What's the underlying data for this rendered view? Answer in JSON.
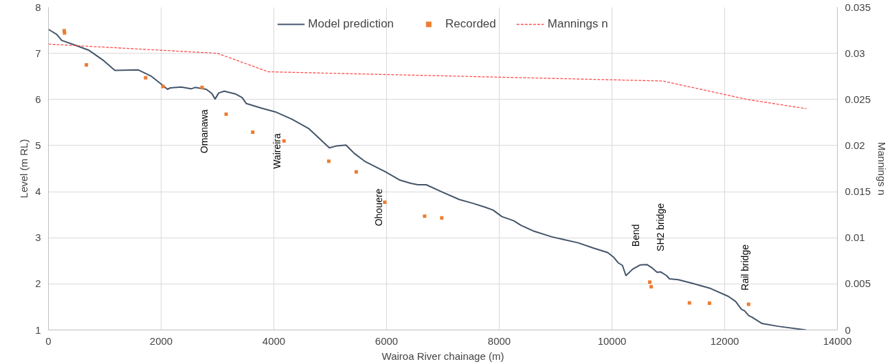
{
  "chart_data": {
    "type": "line",
    "xlabel": "Wairoa River chainage (m)",
    "ylabel": "Level (m RL)",
    "y2label": "Mannings n",
    "xlim": [
      0,
      14000
    ],
    "xticks": [
      0,
      2000,
      4000,
      6000,
      8000,
      10000,
      12000,
      14000
    ],
    "ylim": [
      1,
      8
    ],
    "yticks": [
      1,
      2,
      3,
      4,
      5,
      6,
      7,
      8
    ],
    "y2lim": [
      0,
      0.035
    ],
    "y2ticks": [
      0,
      0.005,
      0.01,
      0.015,
      0.02,
      0.025,
      0.03,
      0.035
    ],
    "grid": true,
    "legend": "top",
    "series": [
      {
        "name": "Model prediction",
        "color": "#44546a",
        "line_style": "solid",
        "x": [
          0,
          147,
          236,
          491,
          712,
          982,
          1179,
          1596,
          1817,
          2014,
          2112,
          2161,
          2358,
          2530,
          2603,
          2800,
          2898,
          2957,
          3021,
          3119,
          3315,
          3438,
          3512,
          3782,
          4028,
          4322,
          4617,
          4985,
          5108,
          5280,
          5428,
          5624,
          5968,
          6238,
          6434,
          6557,
          6704,
          6974,
          7291,
          7525,
          7734,
          7890,
          8047,
          8256,
          8386,
          8621,
          8934,
          9116,
          9403,
          9664,
          9925,
          10029,
          10108,
          10186,
          10248,
          10368,
          10499,
          10619,
          10708,
          10801,
          10864,
          10968,
          11020,
          11177,
          11438,
          11751,
          12064,
          12194,
          12298,
          12350,
          12429,
          12481,
          12664,
          12950,
          13446
        ],
        "values": [
          7.52,
          7.41,
          7.28,
          7.17,
          7.07,
          6.84,
          6.63,
          6.64,
          6.51,
          6.32,
          6.22,
          6.25,
          6.27,
          6.23,
          6.26,
          6.22,
          6.13,
          6.01,
          6.14,
          6.18,
          6.12,
          6.04,
          5.91,
          5.81,
          5.73,
          5.57,
          5.37,
          4.95,
          4.99,
          5.01,
          4.83,
          4.65,
          4.44,
          4.25,
          4.18,
          4.15,
          4.15,
          4.0,
          3.83,
          3.75,
          3.67,
          3.6,
          3.46,
          3.37,
          3.27,
          3.14,
          3.02,
          2.97,
          2.89,
          2.78,
          2.68,
          2.58,
          2.46,
          2.4,
          2.18,
          2.32,
          2.41,
          2.42,
          2.35,
          2.25,
          2.26,
          2.18,
          2.11,
          2.09,
          2.01,
          1.9,
          1.73,
          1.62,
          1.45,
          1.42,
          1.31,
          1.28,
          1.14,
          1.08,
          1.0
        ]
      },
      {
        "name": "Recorded",
        "type": "scatter",
        "color": "#ed7d31",
        "marker": "square",
        "x": [
          280,
          285,
          673,
          1724,
          2033,
          2726,
          3153,
          3625,
          4180,
          4975,
          5462,
          5968,
          6675,
          6979,
          10671,
          10697,
          11375,
          11730,
          12424
        ],
        "values": [
          7.49,
          7.44,
          6.75,
          6.47,
          6.28,
          6.26,
          5.68,
          5.29,
          5.1,
          4.66,
          4.43,
          3.77,
          3.47,
          3.43,
          2.04,
          1.94,
          1.59,
          1.58,
          1.56
        ]
      },
      {
        "name": "Mannings n",
        "axis": "y2",
        "color": "#ff4b4b",
        "line_style": "dashed",
        "x": [
          0,
          3000,
          3900,
          10900,
          12400,
          13450
        ],
        "values": [
          0.031,
          0.03,
          0.028,
          0.027,
          0.025,
          0.024
        ]
      }
    ],
    "annotations": [
      {
        "text": "Omanawa",
        "x": 2767,
        "y": 6.23
      },
      {
        "text": "Waireira",
        "x": 4057,
        "y": 5.71
      },
      {
        "text": "Ohouere",
        "x": 5856,
        "y": 4.51
      },
      {
        "text": "Bend",
        "x": 10421,
        "y": 2.36
      },
      {
        "text": "SH2 bridge",
        "x": 10856,
        "y": 2.26
      },
      {
        "text": "Rail bridge",
        "x": 12357,
        "y": 1.41
      }
    ]
  }
}
